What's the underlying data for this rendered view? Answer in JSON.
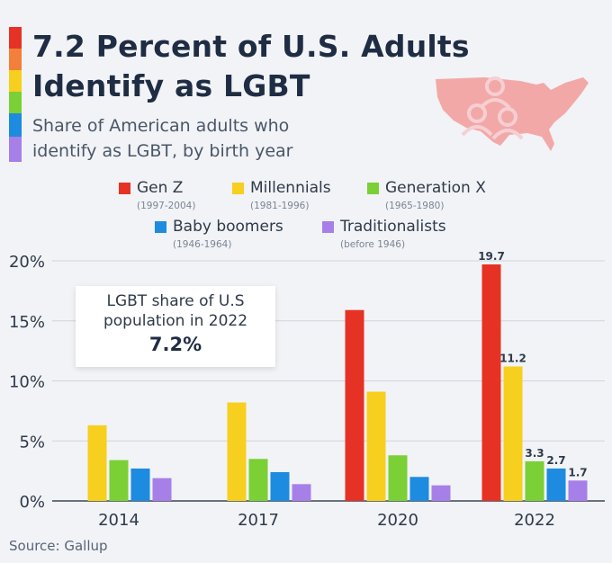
{
  "colors": {
    "stripe": [
      "#e63224",
      "#f47f3a",
      "#f7cf1e",
      "#7ad035",
      "#1d8be0",
      "#a77fe8"
    ],
    "map": "#f3a8a8",
    "map_icon": "#f6cfd2"
  },
  "header": {
    "title_line1": "7.2 Percent of U.S. Adults",
    "title_line2": "Identify as LGBT",
    "subtitle_line1": "Share of American adults who",
    "subtitle_line2": "identify as LGBT, by birth year",
    "icon": "usa-map-people-icon"
  },
  "legend": [
    {
      "label": "Gen Z",
      "years": "(1997-2004)",
      "color": "#e63224"
    },
    {
      "label": "Millennials",
      "years": "(1981-1996)",
      "color": "#f7cf1e"
    },
    {
      "label": "Generation X",
      "years": "(1965-1980)",
      "color": "#7ad035"
    },
    {
      "label": "Baby boomers",
      "years": "(1946-1964)",
      "color": "#1d8be0"
    },
    {
      "label": "Traditionalists",
      "years": "(before 1946)",
      "color": "#a77fe8"
    }
  ],
  "callout": {
    "line1": "LGBT share of U.S",
    "line2": "population in 2022",
    "value": "7.2%"
  },
  "chart_data": {
    "type": "bar",
    "title": "7.2 Percent of U.S. Adults Identify as LGBT",
    "subtitle": "Share of American adults who identify as LGBT, by birth year",
    "categories": [
      "2014",
      "2017",
      "2020",
      "2022"
    ],
    "ylim": [
      0,
      20
    ],
    "yticks": [
      0,
      5,
      10,
      15,
      20
    ],
    "ytick_labels": [
      "0%",
      "5%",
      "10%",
      "15%",
      "20%"
    ],
    "xlabel": "",
    "ylabel": "",
    "legend_position": "top",
    "series": [
      {
        "name": "Gen Z",
        "color": "#e63224",
        "values": [
          null,
          null,
          15.9,
          19.7
        ],
        "labels": [
          null,
          null,
          null,
          "19.7"
        ]
      },
      {
        "name": "Millennials",
        "color": "#f7cf1e",
        "values": [
          6.3,
          8.2,
          9.1,
          11.2
        ],
        "labels": [
          null,
          null,
          null,
          "11.2"
        ]
      },
      {
        "name": "Generation X",
        "color": "#7ad035",
        "values": [
          3.4,
          3.5,
          3.8,
          3.3
        ],
        "labels": [
          null,
          null,
          null,
          "3.3"
        ]
      },
      {
        "name": "Baby boomers",
        "color": "#1d8be0",
        "values": [
          2.7,
          2.4,
          2.0,
          2.7
        ],
        "labels": [
          null,
          null,
          null,
          "2.7"
        ]
      },
      {
        "name": "Traditionalists",
        "color": "#a77fe8",
        "values": [
          1.9,
          1.4,
          1.3,
          1.7
        ],
        "labels": [
          null,
          null,
          null,
          "1.7"
        ]
      }
    ]
  },
  "source": "Source: Gallup"
}
